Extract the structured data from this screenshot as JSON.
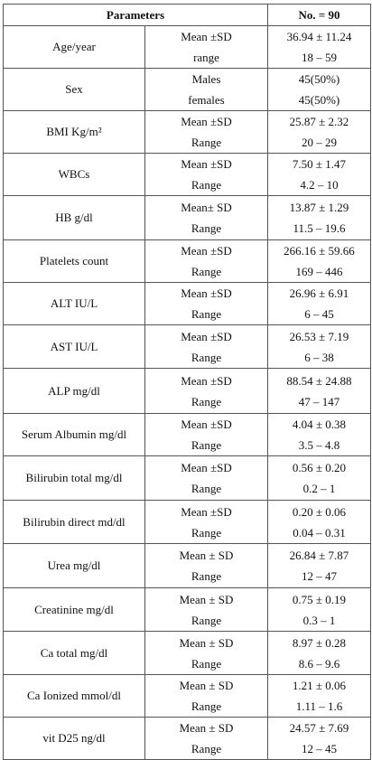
{
  "table": {
    "header": [
      "Parameters",
      "No. = 90"
    ],
    "rows": [
      {
        "parameter": "Age/year",
        "stats": [
          "Mean ±SD",
          "range"
        ],
        "values": [
          "36.94 ± 11.24",
          "18 – 59"
        ]
      },
      {
        "parameter": "Sex",
        "stats": [
          "Males",
          "females"
        ],
        "values": [
          "45(50%)",
          "45(50%)"
        ]
      },
      {
        "parameter": "BMI Kg/m²",
        "stats": [
          "Mean ±SD",
          "Range"
        ],
        "values": [
          "25.87 ± 2.32",
          "20 – 29"
        ]
      },
      {
        "parameter": "WBCs",
        "stats": [
          "Mean ±SD",
          "Range"
        ],
        "values": [
          "7.50 ± 1.47",
          "4.2 – 10"
        ]
      },
      {
        "parameter": "HB g/dl",
        "stats": [
          "Mean± SD",
          "Range"
        ],
        "values": [
          "13.87 ± 1.29",
          "11.5 – 19.6"
        ]
      },
      {
        "parameter": "Platelets count",
        "stats": [
          "Mean ±SD",
          "Range"
        ],
        "values": [
          "266.16 ± 59.66",
          "169 – 446"
        ]
      },
      {
        "parameter": "ALT IU/L",
        "stats": [
          "Mean ±SD",
          "Range"
        ],
        "values": [
          "26.96 ± 6.91",
          "6 – 45"
        ]
      },
      {
        "parameter": "AST IU/L",
        "stats": [
          "Mean ±SD",
          "Range"
        ],
        "values": [
          "26.53 ± 7.19",
          "6 – 38"
        ]
      },
      {
        "parameter": "ALP mg/dl",
        "stats": [
          "Mean ±SD",
          "Range"
        ],
        "values": [
          "88.54 ± 24.88",
          "47 – 147"
        ]
      },
      {
        "parameter": "Serum Albumin mg/dl",
        "stats": [
          "Mean ±SD",
          "Range"
        ],
        "values": [
          "4.04 ± 0.38",
          "3.5 – 4.8"
        ]
      },
      {
        "parameter": "Bilirubin total mg/dl",
        "stats": [
          "Mean ±SD",
          "Range"
        ],
        "values": [
          "0.56 ± 0.20",
          "0.2 – 1"
        ]
      },
      {
        "parameter": "Bilirubin direct md/dl",
        "stats": [
          "Mean ±SD",
          "Range"
        ],
        "values": [
          "0.20 ± 0.06",
          "0.04 – 0.31"
        ]
      },
      {
        "parameter": "Urea mg/dl",
        "stats": [
          "Mean ± SD",
          "Range"
        ],
        "values": [
          "26.84 ± 7.87",
          "12 – 47"
        ]
      },
      {
        "parameter": "Creatinine mg/dl",
        "stats": [
          "Mean ± SD",
          "Range"
        ],
        "values": [
          "0.75 ± 0.19",
          "0.3 – 1"
        ]
      },
      {
        "parameter": "Ca total mg/dl",
        "stats": [
          "Mean ± SD",
          "Range"
        ],
        "values": [
          "8.97 ± 0.28",
          "8.6 – 9.6"
        ]
      },
      {
        "parameter": "Ca Ionized mmol/dl",
        "stats": [
          "Mean ± SD",
          "Range"
        ],
        "values": [
          "1.21 ± 0.06",
          "1.11 – 1.6"
        ]
      },
      {
        "parameter": "vit D25 ng/dl",
        "stats": [
          "Mean ± SD",
          "Range"
        ],
        "values": [
          "24.57 ± 7.69",
          "12 – 45"
        ]
      }
    ]
  }
}
